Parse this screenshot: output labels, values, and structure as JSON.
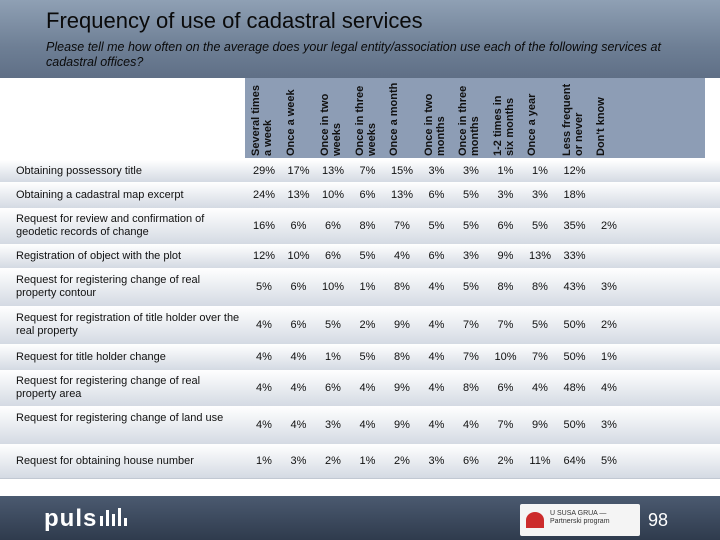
{
  "title": "Frequency of use of cadastral services",
  "subtitle": "Please tell me how often on the average does your legal entity/association use each of the following services at cadastral offices?",
  "columns": [
    "Several times a week",
    "Once a week",
    "Once in two weeks",
    "Once in three weeks",
    "Once a month",
    "Once in two months",
    "Once in three months",
    "1-2 times in six months",
    "Once a year",
    "Less frequent or never",
    "Don't know"
  ],
  "rows": [
    {
      "label": "Obtaining possessory title",
      "values": [
        "29%",
        "17%",
        "13%",
        "7%",
        "15%",
        "3%",
        "3%",
        "1%",
        "1%",
        "12%",
        ""
      ]
    },
    {
      "label": "Obtaining a cadastral map excerpt",
      "values": [
        "24%",
        "13%",
        "10%",
        "6%",
        "13%",
        "6%",
        "5%",
        "3%",
        "3%",
        "18%",
        ""
      ]
    },
    {
      "label": "Request for review and confirmation of geodetic records of change",
      "values": [
        "16%",
        "6%",
        "6%",
        "8%",
        "7%",
        "5%",
        "5%",
        "6%",
        "5%",
        "35%",
        "2%"
      ]
    },
    {
      "label": "Registration of object with the plot",
      "values": [
        "12%",
        "10%",
        "6%",
        "5%",
        "4%",
        "6%",
        "3%",
        "9%",
        "13%",
        "33%",
        ""
      ]
    },
    {
      "label": "Request for registering change of real property contour",
      "values": [
        "5%",
        "6%",
        "10%",
        "1%",
        "8%",
        "4%",
        "5%",
        "8%",
        "8%",
        "43%",
        "3%"
      ]
    },
    {
      "label": "Request for registration of title holder over the real property",
      "values": [
        "4%",
        "6%",
        "5%",
        "2%",
        "9%",
        "4%",
        "7%",
        "7%",
        "5%",
        "50%",
        "2%"
      ]
    },
    {
      "label": "Request for title holder change",
      "values": [
        "4%",
        "4%",
        "1%",
        "5%",
        "8%",
        "4%",
        "7%",
        "10%",
        "7%",
        "50%",
        "1%"
      ]
    },
    {
      "label": "Request for registering change of real property area",
      "values": [
        "4%",
        "4%",
        "6%",
        "4%",
        "9%",
        "4%",
        "8%",
        "6%",
        "4%",
        "48%",
        "4%"
      ]
    },
    {
      "label": "Request for registering change of land use",
      "values": [
        "4%",
        "4%",
        "3%",
        "4%",
        "9%",
        "4%",
        "4%",
        "7%",
        "9%",
        "50%",
        "3%"
      ]
    },
    {
      "label": "Request for obtaining house number",
      "values": [
        "1%",
        "3%",
        "2%",
        "1%",
        "2%",
        "3%",
        "6%",
        "2%",
        "11%",
        "64%",
        "5%"
      ]
    }
  ],
  "footer": {
    "logo_text": "puls",
    "partner_logo_text": "U SUSA GRUA — Partnerski program",
    "page_number": "98"
  },
  "colors": {
    "header_gradient": "#7a8aa0",
    "column_header": "#8d9db5",
    "footer": "#3a4658"
  }
}
